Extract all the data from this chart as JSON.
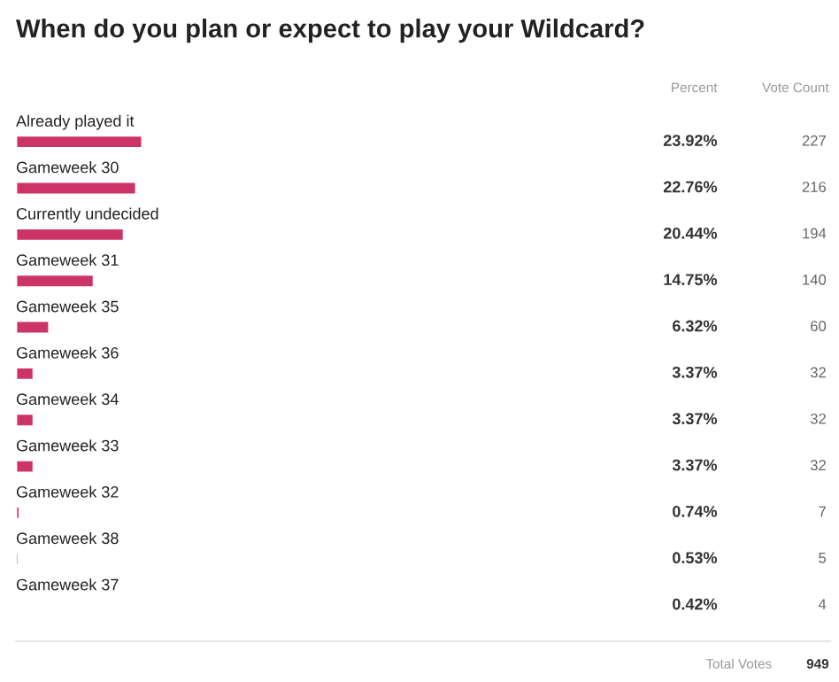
{
  "chart_data": {
    "type": "bar",
    "orientation": "horizontal",
    "title": "When do you plan or expect to play your Wildcard?",
    "categories": [
      "Already played it",
      "Gameweek 30",
      "Currently undecided",
      "Gameweek 31",
      "Gameweek 35",
      "Gameweek 36",
      "Gameweek 34",
      "Gameweek 33",
      "Gameweek 32",
      "Gameweek 38",
      "Gameweek 37"
    ],
    "series": [
      {
        "color": "#cc3366",
        "values": [
          23.92,
          22.76,
          20.44,
          14.75,
          6.32,
          3.37,
          3.37,
          3.37,
          0.74,
          0.53,
          0.42
        ],
        "value_labels": [
          "23.92%",
          "22.76%",
          "20.44%",
          "14.75%",
          "6.32%",
          "3.37%",
          "3.37%",
          "3.37%",
          "0.74%",
          "0.53%",
          "0.42%"
        ]
      }
    ],
    "annotations": [
      "Percent",
      "Vote Count",
      "227",
      "216",
      "194",
      "140",
      "60",
      "32",
      "32",
      "32",
      "7",
      "5",
      "4",
      "Total Votes",
      "949"
    ]
  }
}
